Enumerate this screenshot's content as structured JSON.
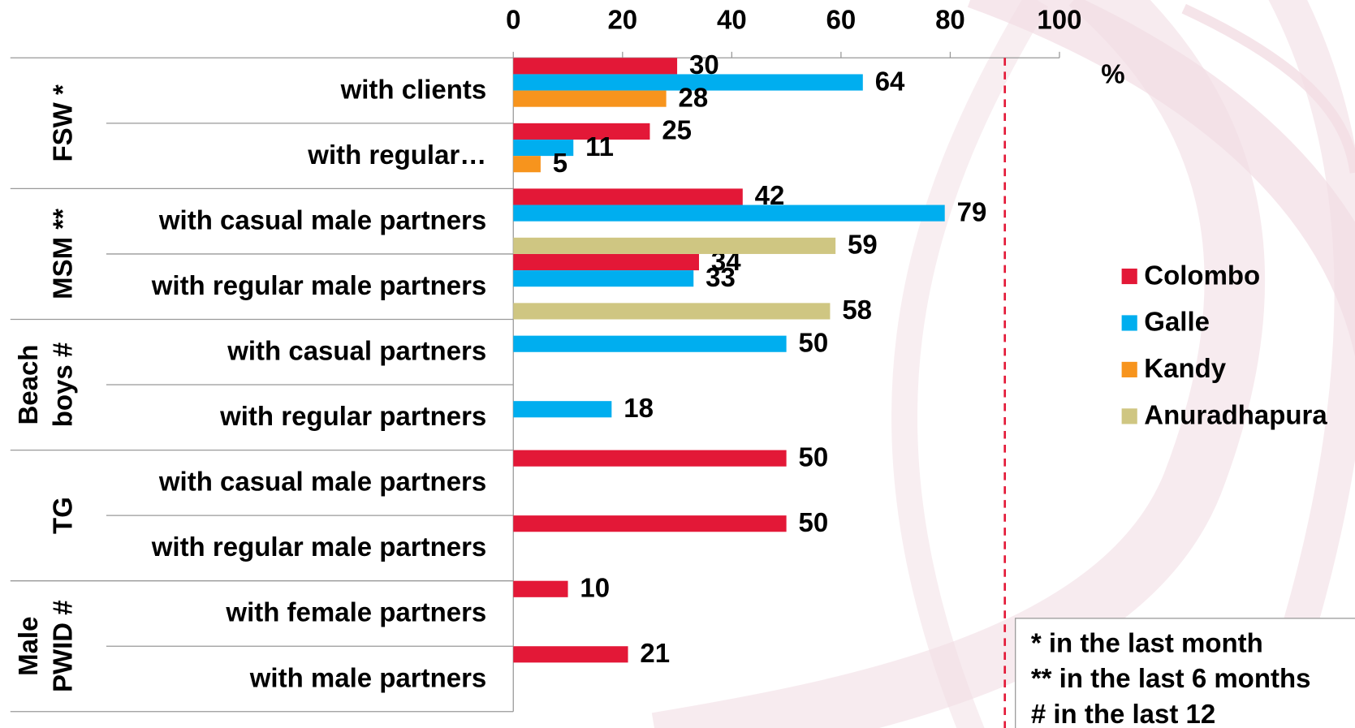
{
  "chart_data": {
    "type": "bar",
    "orientation": "horizontal",
    "groups": [
      {
        "label": [
          "FSW *"
        ],
        "categories": [
          "with clients",
          "with regular…"
        ]
      },
      {
        "label": [
          "MSM **"
        ],
        "categories": [
          "with casual male partners",
          "with regular male partners"
        ]
      },
      {
        "label": [
          "Beach",
          "boys #"
        ],
        "categories": [
          "with casual partners",
          "with regular partners"
        ]
      },
      {
        "label": [
          "TG"
        ],
        "categories": [
          "with casual male partners",
          "with regular male partners"
        ]
      },
      {
        "label": [
          "Male",
          "PWID #"
        ],
        "categories": [
          "with female partners",
          "with male partners"
        ]
      }
    ],
    "series": [
      {
        "name": "Colombo",
        "color": "#e31837",
        "values": [
          30,
          25,
          42,
          34,
          null,
          null,
          50,
          50,
          10,
          21
        ]
      },
      {
        "name": "Galle",
        "color": "#00aeef",
        "values": [
          64,
          11,
          79,
          33,
          50,
          18,
          null,
          null,
          null,
          null
        ]
      },
      {
        "name": "Kandy",
        "color": "#f7941d",
        "values": [
          28,
          5,
          null,
          null,
          null,
          null,
          null,
          null,
          null,
          null
        ]
      },
      {
        "name": "Anuradhapura",
        "color": "#cfc682",
        "values": [
          null,
          null,
          59,
          58,
          null,
          null,
          null,
          null,
          null,
          null
        ]
      }
    ],
    "xlim": [
      0,
      100
    ],
    "xticks": [
      0,
      20,
      40,
      60,
      80,
      100
    ],
    "x_label": "%",
    "reference_line": {
      "value": 90,
      "color": "#e31837",
      "style": "dashed"
    },
    "legend": "right",
    "footnotes": [
      "* in the last month",
      "** in the last 6 months",
      "# in the last 12"
    ]
  }
}
